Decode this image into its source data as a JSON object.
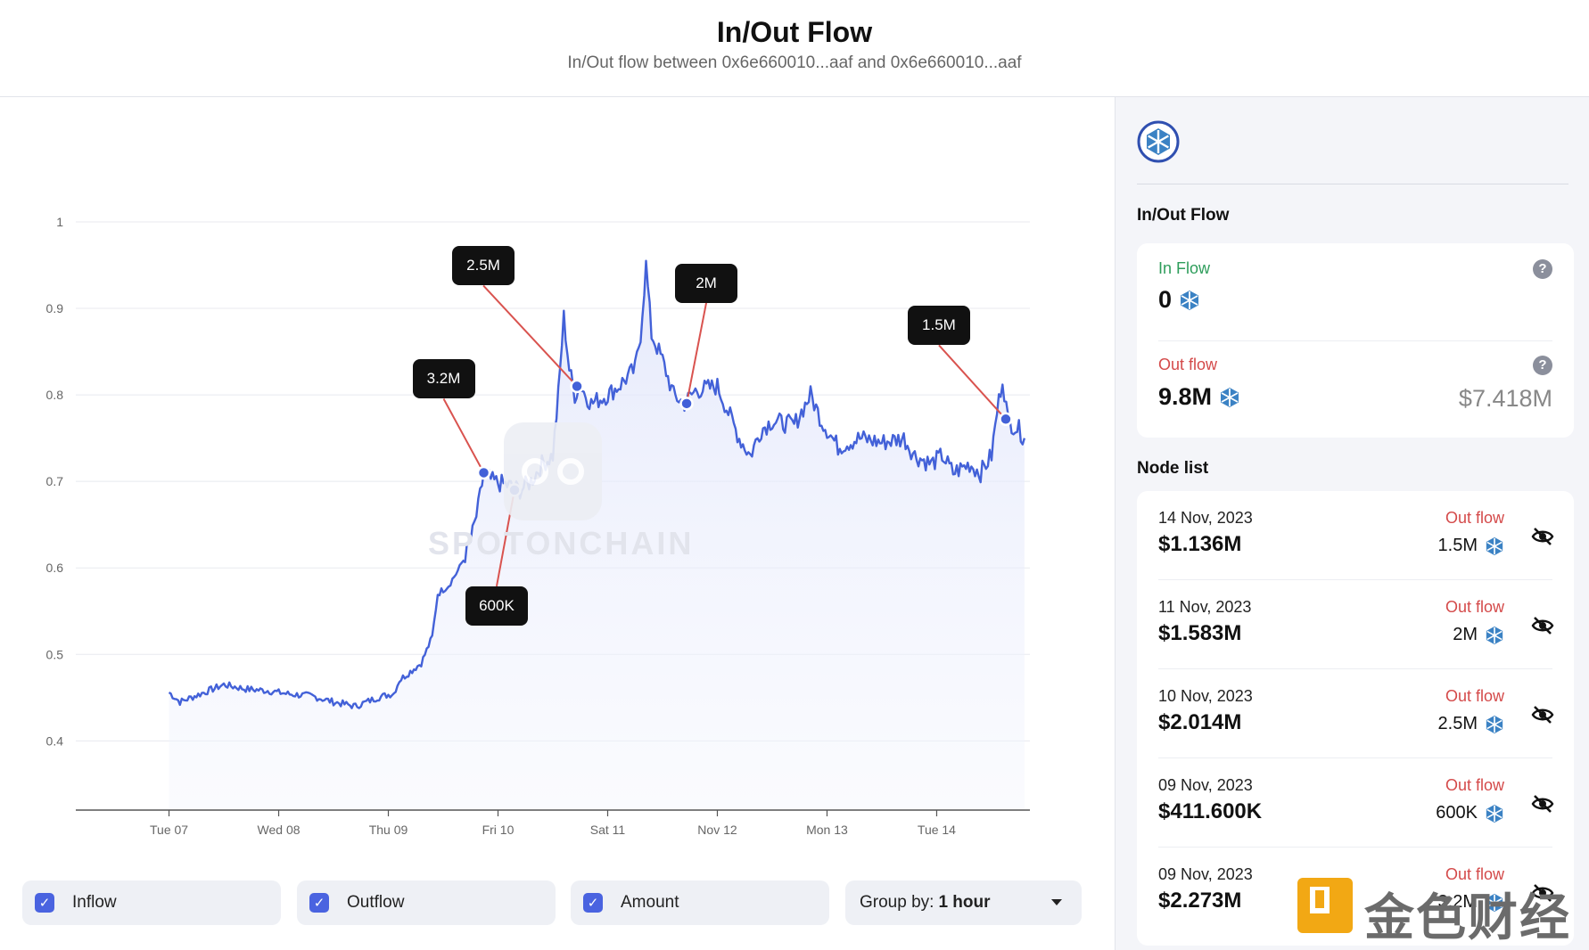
{
  "header": {
    "title": "In/Out Flow",
    "subtitle": "In/Out flow between 0x6e660010...aaf and 0x6e660010...aaf"
  },
  "watermark": {
    "text": "SPOTONCHAIN"
  },
  "chart_data": {
    "type": "area",
    "title": "",
    "xlabel": "",
    "ylabel": "",
    "ylim": [
      0.32,
      1.0
    ],
    "y_ticks": [
      "1",
      "0.9",
      "0.8",
      "0.7",
      "0.6",
      "0.5",
      "0.4"
    ],
    "x_ticks": [
      "Tue 07",
      "Wed 08",
      "Thu 09",
      "Fri 10",
      "Sat 11",
      "Nov 12",
      "Mon 13",
      "Tue 14"
    ],
    "grid": true,
    "line_color": "#4361d8",
    "series": [
      {
        "values": [
          [
            0.0,
            0.456
          ],
          [
            0.1,
            0.445
          ],
          [
            0.3,
            0.455
          ],
          [
            0.5,
            0.465
          ],
          [
            0.7,
            0.46
          ],
          [
            0.9,
            0.458
          ],
          [
            1.1,
            0.454
          ],
          [
            1.3,
            0.452
          ],
          [
            1.5,
            0.445
          ],
          [
            1.7,
            0.44
          ],
          [
            1.9,
            0.45
          ],
          [
            2.05,
            0.455
          ],
          [
            2.1,
            0.47
          ],
          [
            2.2,
            0.48
          ],
          [
            2.3,
            0.49
          ],
          [
            2.4,
            0.52
          ],
          [
            2.45,
            0.57
          ],
          [
            2.55,
            0.58
          ],
          [
            2.65,
            0.6
          ],
          [
            2.75,
            0.63
          ],
          [
            2.82,
            0.67
          ],
          [
            2.87,
            0.71
          ],
          [
            2.95,
            0.7
          ],
          [
            3.1,
            0.695
          ],
          [
            3.2,
            0.69
          ],
          [
            3.3,
            0.7
          ],
          [
            3.4,
            0.72
          ],
          [
            3.5,
            0.73
          ],
          [
            3.55,
            0.8
          ],
          [
            3.6,
            0.89
          ],
          [
            3.65,
            0.83
          ],
          [
            3.7,
            0.8
          ],
          [
            3.75,
            0.81
          ],
          [
            3.85,
            0.79
          ],
          [
            4.0,
            0.8
          ],
          [
            4.1,
            0.81
          ],
          [
            4.25,
            0.83
          ],
          [
            4.3,
            0.87
          ],
          [
            4.35,
            0.95
          ],
          [
            4.4,
            0.87
          ],
          [
            4.5,
            0.84
          ],
          [
            4.6,
            0.8
          ],
          [
            4.7,
            0.79
          ],
          [
            4.8,
            0.805
          ],
          [
            5.0,
            0.81
          ],
          [
            5.1,
            0.78
          ],
          [
            5.2,
            0.75
          ],
          [
            5.3,
            0.73
          ],
          [
            5.4,
            0.76
          ],
          [
            5.5,
            0.77
          ],
          [
            5.7,
            0.765
          ],
          [
            5.85,
            0.8
          ],
          [
            5.95,
            0.77
          ],
          [
            6.1,
            0.74
          ],
          [
            6.3,
            0.75
          ],
          [
            6.5,
            0.745
          ],
          [
            6.7,
            0.75
          ],
          [
            6.8,
            0.73
          ],
          [
            6.95,
            0.72
          ],
          [
            7.05,
            0.73
          ],
          [
            7.15,
            0.71
          ],
          [
            7.3,
            0.72
          ],
          [
            7.4,
            0.71
          ],
          [
            7.5,
            0.73
          ],
          [
            7.55,
            0.78
          ],
          [
            7.6,
            0.82
          ],
          [
            7.65,
            0.77
          ],
          [
            7.75,
            0.76
          ],
          [
            7.8,
            0.75
          ]
        ]
      }
    ],
    "annotations": [
      {
        "label": "3.2M",
        "x": 2.87,
        "y": 0.71
      },
      {
        "label": "600K",
        "x": 3.15,
        "y": 0.69
      },
      {
        "label": "2.5M",
        "x": 3.72,
        "y": 0.81
      },
      {
        "label": "2M",
        "x": 4.72,
        "y": 0.79
      },
      {
        "label": "1.5M",
        "x": 7.63,
        "y": 0.772
      }
    ]
  },
  "controls": {
    "inflow_label": "Inflow",
    "outflow_label": "Outflow",
    "amount_label": "Amount",
    "group_prefix": "Group by:",
    "group_value": "1 hour",
    "check_glyph": "✓"
  },
  "sidebar": {
    "flow_title": "In/Out Flow",
    "in_flow_label": "In Flow",
    "in_flow_value": "0",
    "out_flow_label": "Out flow",
    "out_flow_value": "9.8M",
    "out_flow_usd": "$7.418M",
    "help_glyph": "?",
    "node_list_title": "Node list",
    "nodes": [
      {
        "date": "14 Nov, 2023",
        "usd": "$1.136M",
        "direction": "Out flow",
        "amount": "1.5M"
      },
      {
        "date": "11 Nov, 2023",
        "usd": "$1.583M",
        "direction": "Out flow",
        "amount": "2M"
      },
      {
        "date": "10 Nov, 2023",
        "usd": "$2.014M",
        "direction": "Out flow",
        "amount": "2.5M"
      },
      {
        "date": "09 Nov, 2023",
        "usd": "$411.600K",
        "direction": "Out flow",
        "amount": "600K"
      },
      {
        "date": "09 Nov, 2023",
        "usd": "$2.273M",
        "direction": "Out flow",
        "amount": "3.2M"
      }
    ],
    "colors": {
      "in": "#2e9d5b",
      "out": "#d44a4a"
    }
  },
  "branding": {
    "logo_text": "金色财经"
  }
}
